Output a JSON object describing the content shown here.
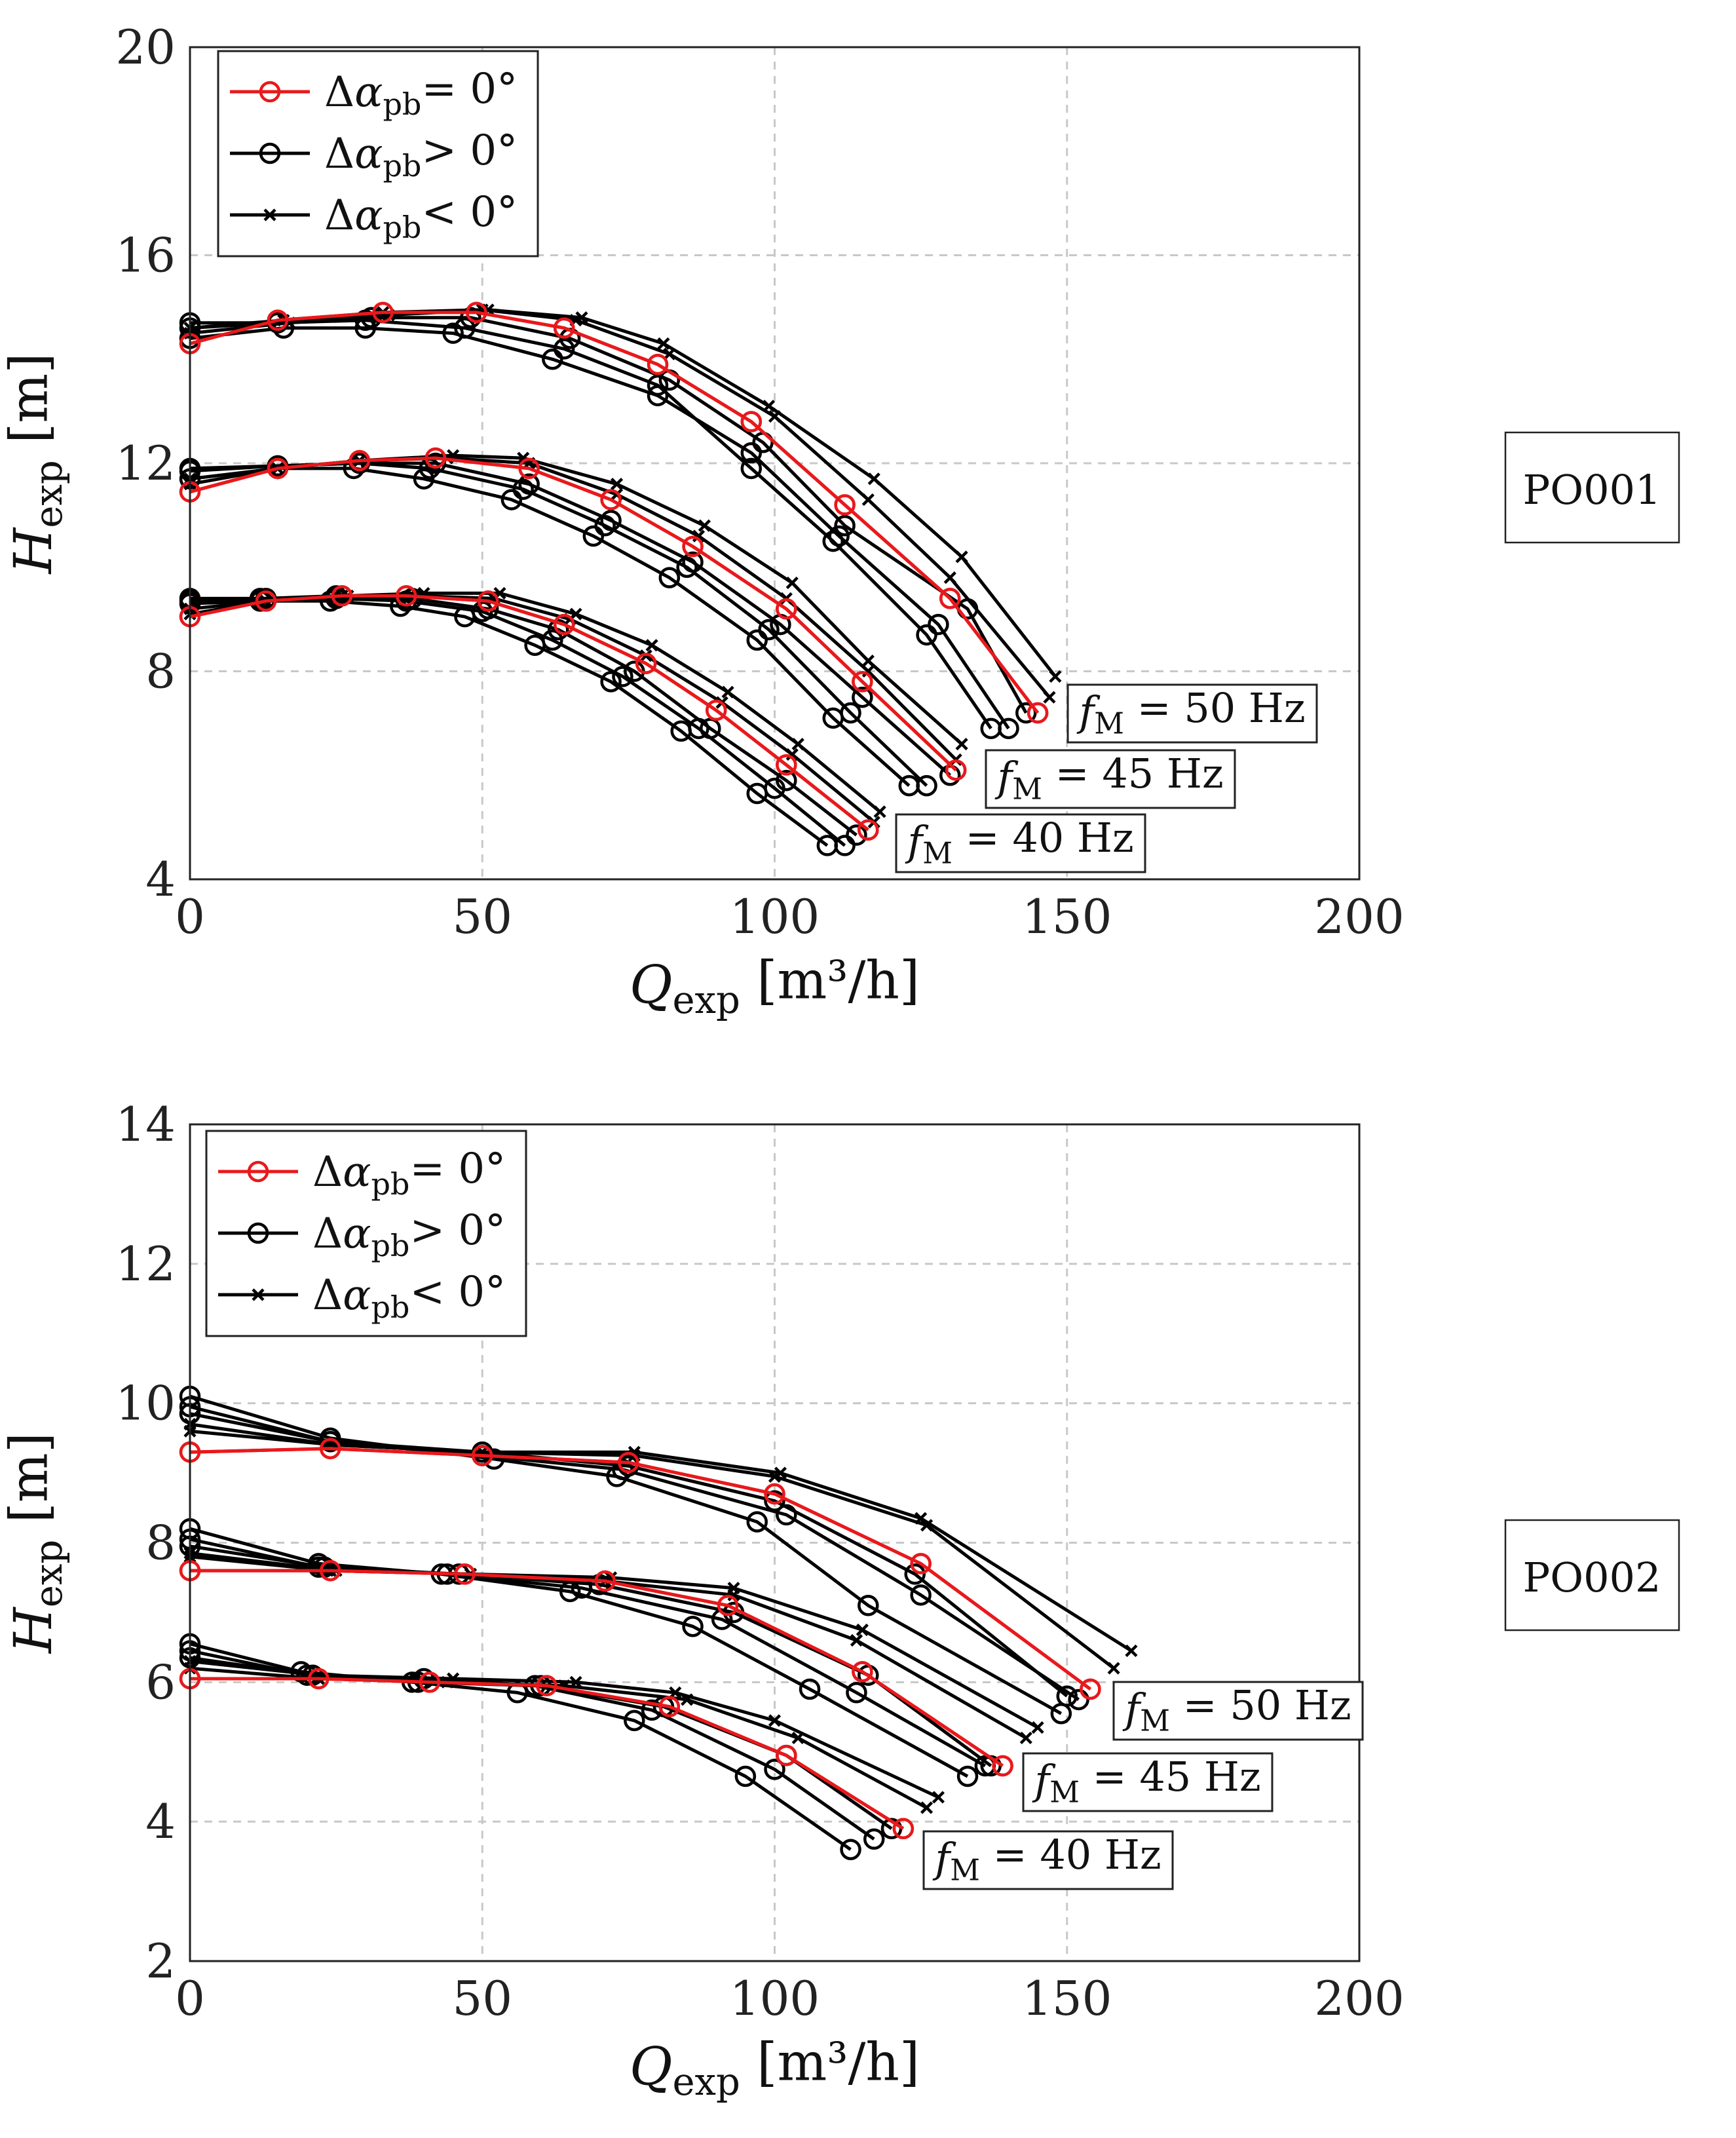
{
  "colors": {
    "red": "#e8191c",
    "black": "#000000"
  },
  "legend": {
    "red": "Δα_pb= 0°",
    "pos": "Δα_pb> 0°",
    "neg": "Δα_pb< 0°"
  },
  "chart_data": [
    {
      "type": "line",
      "tag": "PO001",
      "xlabel": "Q_exp [m³/h]",
      "ylabel": "H_exp [m]",
      "xlim": [
        0,
        200
      ],
      "ylim": [
        4,
        20
      ],
      "xticks": [
        "0",
        "50",
        "100",
        "150",
        "200"
      ],
      "yticks": [
        "4",
        "8",
        "12",
        "16",
        "20"
      ],
      "xtick_values": [
        0,
        50,
        100,
        150,
        200
      ],
      "ytick_values": [
        4,
        8,
        12,
        16,
        20
      ],
      "legend_position": "top-left",
      "annotations": [
        {
          "label": "f_M = 50 Hz",
          "x": 149,
          "y": 7.3
        },
        {
          "label": "f_M = 45 Hz",
          "x": 135,
          "y": 6.2
        },
        {
          "label": "f_M = 40 Hz",
          "x": 122,
          "y": 4.9
        }
      ],
      "series": [
        {
          "name": "50 Hz Δα_pb= 0°",
          "style": "red",
          "x": [
            0,
            15,
            33,
            49,
            64,
            80,
            96,
            112,
            130,
            145
          ],
          "y": [
            14.3,
            14.75,
            14.9,
            14.9,
            14.6,
            13.9,
            12.8,
            11.2,
            9.4,
            7.2
          ]
        },
        {
          "name": "50 Hz Δα_pb> 0°",
          "style": "circle",
          "x": [
            0,
            16,
            30,
            45,
            62,
            80,
            96,
            111,
            128,
            140
          ],
          "y": [
            14.4,
            14.6,
            14.6,
            14.5,
            14.0,
            13.3,
            12.2,
            10.6,
            8.9,
            6.9
          ]
        },
        {
          "name": "50 Hz Δα_pb> 0°",
          "style": "circle",
          "x": [
            0,
            15,
            30,
            47,
            64,
            80,
            96,
            110,
            126,
            137
          ],
          "y": [
            14.7,
            14.7,
            14.75,
            14.6,
            14.2,
            13.5,
            11.9,
            10.5,
            8.7,
            6.9
          ]
        },
        {
          "name": "50 Hz Δα_pb> 0°",
          "style": "circle",
          "x": [
            0,
            15,
            31,
            48,
            65,
            82,
            98,
            112,
            133,
            143
          ],
          "y": [
            14.6,
            14.7,
            14.8,
            14.8,
            14.4,
            13.6,
            12.4,
            10.8,
            9.2,
            7.2
          ]
        },
        {
          "name": "50 Hz Δα_pb< 0°",
          "style": "cross",
          "x": [
            0,
            17,
            34,
            51,
            67,
            81,
            99,
            117,
            132,
            148
          ],
          "y": [
            14.5,
            14.7,
            14.85,
            14.95,
            14.8,
            14.3,
            13.1,
            11.7,
            10.2,
            7.9
          ]
        },
        {
          "name": "50 Hz Δα_pb< 0°",
          "style": "cross",
          "x": [
            0,
            16,
            33,
            50,
            66,
            82,
            100,
            116,
            130,
            147
          ],
          "y": [
            14.6,
            14.75,
            14.9,
            14.95,
            14.75,
            14.1,
            12.9,
            11.3,
            9.8,
            7.5
          ]
        },
        {
          "name": "45 Hz Δα_pb= 0°",
          "style": "red",
          "x": [
            0,
            15,
            29,
            42,
            58,
            72,
            86,
            102,
            115,
            131
          ],
          "y": [
            11.45,
            11.9,
            12.05,
            12.1,
            11.9,
            11.3,
            10.4,
            9.2,
            7.8,
            6.1
          ]
        },
        {
          "name": "45 Hz Δα_pb> 0°",
          "style": "circle",
          "x": [
            0,
            15,
            28,
            40,
            55,
            69,
            82,
            97,
            110,
            123
          ],
          "y": [
            11.7,
            11.9,
            11.9,
            11.7,
            11.3,
            10.6,
            9.8,
            8.6,
            7.1,
            5.8
          ]
        },
        {
          "name": "45 Hz Δα_pb> 0°",
          "style": "circle",
          "x": [
            0,
            15,
            29,
            41,
            57,
            71,
            85,
            99,
            113,
            126
          ],
          "y": [
            11.85,
            11.95,
            12.0,
            11.9,
            11.5,
            10.8,
            10.0,
            8.8,
            7.2,
            5.8
          ]
        },
        {
          "name": "45 Hz Δα_pb> 0°",
          "style": "circle",
          "x": [
            0,
            15,
            29,
            42,
            58,
            72,
            86,
            101,
            115,
            130
          ],
          "y": [
            11.9,
            11.95,
            12.0,
            12.0,
            11.6,
            10.9,
            10.1,
            8.9,
            7.5,
            6.0
          ]
        },
        {
          "name": "45 Hz Δα_pb< 0°",
          "style": "cross",
          "x": [
            0,
            15,
            29,
            45,
            57,
            73,
            88,
            103,
            116,
            132
          ],
          "y": [
            11.6,
            11.9,
            12.05,
            12.15,
            12.1,
            11.6,
            10.8,
            9.7,
            8.2,
            6.6
          ]
        },
        {
          "name": "45 Hz Δα_pb< 0°",
          "style": "cross",
          "x": [
            0,
            15,
            29,
            44,
            58,
            73,
            87,
            102,
            116,
            131
          ],
          "y": [
            11.7,
            11.9,
            12.05,
            12.1,
            12.0,
            11.4,
            10.6,
            9.4,
            8.0,
            6.3
          ]
        },
        {
          "name": "40 Hz Δα_pb= 0°",
          "style": "red",
          "x": [
            0,
            13,
            26,
            37,
            51,
            64,
            78,
            90,
            102,
            116
          ],
          "y": [
            9.05,
            9.35,
            9.45,
            9.45,
            9.35,
            8.9,
            8.15,
            7.25,
            6.2,
            4.95
          ]
        },
        {
          "name": "40 Hz Δα_pb> 0°",
          "style": "circle",
          "x": [
            0,
            12,
            24,
            36,
            47,
            59,
            72,
            84,
            97,
            109
          ],
          "y": [
            9.3,
            9.35,
            9.35,
            9.25,
            9.05,
            8.5,
            7.8,
            6.85,
            5.65,
            4.65
          ]
        },
        {
          "name": "40 Hz Δα_pb> 0°",
          "style": "circle",
          "x": [
            0,
            12,
            25,
            37,
            50,
            62,
            74,
            87,
            100,
            112
          ],
          "y": [
            9.35,
            9.4,
            9.4,
            9.35,
            9.15,
            8.6,
            7.9,
            6.9,
            5.75,
            4.65
          ]
        },
        {
          "name": "40 Hz Δα_pb> 0°",
          "style": "circle",
          "x": [
            0,
            13,
            25,
            38,
            51,
            63,
            76,
            89,
            102,
            114
          ],
          "y": [
            9.4,
            9.4,
            9.45,
            9.4,
            9.2,
            8.8,
            8.0,
            6.9,
            5.9,
            4.85
          ]
        },
        {
          "name": "40 Hz Δα_pb< 0°",
          "style": "cross",
          "x": [
            0,
            13,
            27,
            40,
            53,
            66,
            79,
            92,
            104,
            118
          ],
          "y": [
            9.2,
            9.35,
            9.45,
            9.5,
            9.5,
            9.1,
            8.5,
            7.6,
            6.6,
            5.3
          ]
        },
        {
          "name": "40 Hz Δα_pb< 0°",
          "style": "cross",
          "x": [
            0,
            13,
            26,
            39,
            52,
            65,
            78,
            91,
            103,
            117
          ],
          "y": [
            9.1,
            9.35,
            9.45,
            9.45,
            9.4,
            9.0,
            8.3,
            7.4,
            6.4,
            5.1
          ]
        }
      ]
    },
    {
      "type": "line",
      "tag": "PO002",
      "xlabel": "Q_exp [m³/h]",
      "ylabel": "H_exp [m]",
      "xlim": [
        0,
        200
      ],
      "ylim": [
        2,
        14
      ],
      "xticks": [
        "0",
        "50",
        "100",
        "150",
        "200"
      ],
      "yticks": [
        "2",
        "4",
        "6",
        "8",
        "10",
        "12",
        "14"
      ],
      "xtick_values": [
        0,
        50,
        100,
        150,
        200
      ],
      "ytick_values": [
        2,
        4,
        6,
        8,
        10,
        12,
        14
      ],
      "legend_position": "top-left",
      "annotations": [
        {
          "label": "f_M = 50 Hz",
          "x": 159,
          "y": 5.6
        },
        {
          "label": "f_M = 45 Hz",
          "x": 144,
          "y": 4.55
        },
        {
          "label": "f_M = 40 Hz",
          "x": 127,
          "y": 3.45
        }
      ],
      "series": [
        {
          "name": "50 Hz Δα_pb= 0°",
          "style": "red",
          "x": [
            0,
            24,
            50,
            75,
            100,
            125,
            154
          ],
          "y": [
            9.3,
            9.35,
            9.25,
            9.15,
            8.7,
            7.7,
            5.9
          ]
        },
        {
          "name": "50 Hz Δα_pb> 0°",
          "style": "circle",
          "x": [
            0,
            24,
            52,
            73,
            97,
            116,
            149
          ],
          "y": [
            10.1,
            9.5,
            9.2,
            8.95,
            8.3,
            7.1,
            5.55
          ]
        },
        {
          "name": "50 Hz Δα_pb> 0°",
          "style": "circle",
          "x": [
            0,
            24,
            50,
            74,
            102,
            125,
            152
          ],
          "y": [
            9.95,
            9.45,
            9.25,
            9.05,
            8.4,
            7.25,
            5.75
          ]
        },
        {
          "name": "50 Hz Δα_pb> 0°",
          "style": "circle",
          "x": [
            0,
            24,
            50,
            75,
            100,
            124,
            150
          ],
          "y": [
            9.85,
            9.45,
            9.3,
            9.1,
            8.6,
            7.55,
            5.8
          ]
        },
        {
          "name": "50 Hz Δα_pb< 0°",
          "style": "cross",
          "x": [
            0,
            25,
            50,
            76,
            101,
            125,
            161
          ],
          "y": [
            9.7,
            9.4,
            9.3,
            9.3,
            9.0,
            8.35,
            6.45
          ]
        },
        {
          "name": "50 Hz Δα_pb< 0°",
          "style": "cross",
          "x": [
            0,
            25,
            50,
            76,
            100,
            126,
            158
          ],
          "y": [
            9.6,
            9.4,
            9.3,
            9.25,
            8.95,
            8.25,
            6.2
          ]
        },
        {
          "name": "45 Hz Δα_pb= 0°",
          "style": "red",
          "x": [
            0,
            24,
            47,
            71,
            92,
            115,
            139
          ],
          "y": [
            7.6,
            7.6,
            7.55,
            7.45,
            7.1,
            6.15,
            4.8
          ]
        },
        {
          "name": "45 Hz Δα_pb> 0°",
          "style": "circle",
          "x": [
            0,
            22,
            43,
            65,
            86,
            106,
            133
          ],
          "y": [
            8.2,
            7.7,
            7.55,
            7.3,
            6.8,
            5.9,
            4.65
          ]
        },
        {
          "name": "45 Hz Δα_pb> 0°",
          "style": "circle",
          "x": [
            0,
            22,
            44,
            67,
            91,
            114,
            136
          ],
          "y": [
            8.05,
            7.65,
            7.55,
            7.35,
            6.9,
            5.85,
            4.8
          ]
        },
        {
          "name": "45 Hz Δα_pb> 0°",
          "style": "circle",
          "x": [
            0,
            23,
            46,
            70,
            93,
            116,
            137
          ],
          "y": [
            7.95,
            7.65,
            7.55,
            7.4,
            7.0,
            6.1,
            4.8
          ]
        },
        {
          "name": "45 Hz Δα_pb< 0°",
          "style": "cross",
          "x": [
            0,
            25,
            48,
            72,
            93,
            115,
            145
          ],
          "y": [
            7.85,
            7.6,
            7.55,
            7.5,
            7.35,
            6.75,
            5.35
          ]
        },
        {
          "name": "45 Hz Δα_pb< 0°",
          "style": "cross",
          "x": [
            0,
            24,
            48,
            71,
            93,
            114,
            143
          ],
          "y": [
            7.8,
            7.6,
            7.55,
            7.45,
            7.25,
            6.6,
            5.2
          ]
        },
        {
          "name": "40 Hz Δα_pb= 0°",
          "style": "red",
          "x": [
            0,
            22,
            41,
            61,
            82,
            102,
            122
          ],
          "y": [
            6.05,
            6.05,
            6.0,
            5.95,
            5.65,
            4.95,
            3.9
          ]
        },
        {
          "name": "40 Hz Δα_pb> 0°",
          "style": "circle",
          "x": [
            0,
            19,
            38,
            56,
            76,
            95,
            113
          ],
          "y": [
            6.55,
            6.15,
            6.0,
            5.85,
            5.45,
            4.65,
            3.6
          ]
        },
        {
          "name": "40 Hz Δα_pb> 0°",
          "style": "circle",
          "x": [
            0,
            20,
            39,
            59,
            79,
            100,
            117
          ],
          "y": [
            6.45,
            6.1,
            6.0,
            5.95,
            5.6,
            4.75,
            3.75
          ]
        },
        {
          "name": "40 Hz Δα_pb> 0°",
          "style": "circle",
          "x": [
            0,
            21,
            40,
            60,
            81,
            102,
            120
          ],
          "y": [
            6.35,
            6.1,
            6.05,
            5.95,
            5.65,
            4.95,
            3.9
          ]
        },
        {
          "name": "40 Hz Δα_pb< 0°",
          "style": "cross",
          "x": [
            0,
            22,
            45,
            66,
            83,
            100,
            128
          ],
          "y": [
            6.3,
            6.1,
            6.05,
            6.0,
            5.85,
            5.45,
            4.35
          ]
        },
        {
          "name": "40 Hz Δα_pb< 0°",
          "style": "cross",
          "x": [
            0,
            22,
            44,
            64,
            85,
            104,
            126
          ],
          "y": [
            6.2,
            6.05,
            6.0,
            5.95,
            5.75,
            5.2,
            4.2
          ]
        }
      ]
    }
  ]
}
